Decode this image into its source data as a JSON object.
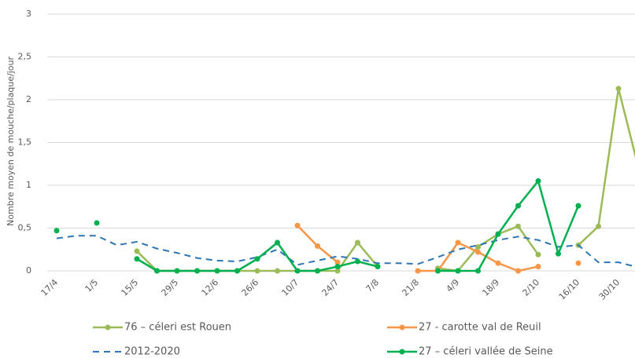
{
  "chart_data": {
    "type": "line",
    "y_label": "Nombre moyen de mouche/plaque/jour",
    "categories": [
      "17/4",
      null,
      "1/5",
      null,
      "15/5",
      null,
      "29/5",
      null,
      "12/6",
      null,
      "26/6",
      null,
      "10/7",
      null,
      "24/7",
      null,
      "7/8",
      null,
      "21/8",
      null,
      "4/9",
      null,
      "18/9",
      null,
      "2/10",
      null,
      "16/10",
      null,
      "30/10",
      null
    ],
    "ylim": [
      0,
      3
    ],
    "yticks": [
      0,
      {
        "value": 0.5,
        "label": "0,5"
      },
      1,
      {
        "value": 1.5,
        "label": "1,5"
      },
      2,
      {
        "value": 2.5,
        "label": "2,5"
      },
      3
    ],
    "grid": true,
    "legend": "bottom",
    "series": [
      {
        "name": "76 – céleri est Rouen",
        "color": "#9bbb59",
        "dashed": false,
        "markers": true,
        "values": [
          null,
          null,
          null,
          null,
          0.23,
          0,
          0,
          0,
          0,
          0,
          0,
          0,
          0,
          0,
          0,
          0.33,
          0.05,
          null,
          null,
          0.03,
          0,
          0.28,
          0.43,
          0.52,
          0.19,
          null,
          0.3,
          0.52,
          2.13,
          1.2
        ]
      },
      {
        "name": "27 - carotte val de Reuil",
        "color": "#f79646",
        "dashed": false,
        "markers": true,
        "values": [
          null,
          null,
          null,
          null,
          null,
          null,
          null,
          null,
          null,
          null,
          null,
          null,
          0.53,
          0.29,
          0.1,
          null,
          null,
          null,
          0,
          0,
          0.33,
          0.22,
          0.09,
          0,
          0.05,
          null,
          0.09,
          null,
          null,
          null
        ]
      },
      {
        "name": "2012-2020",
        "color": "#2e75b6",
        "dashed": true,
        "markers": false,
        "values": [
          0.38,
          0.41,
          0.41,
          0.3,
          0.34,
          0.26,
          0.21,
          0.15,
          0.12,
          0.11,
          0.16,
          0.25,
          0.07,
          0.12,
          0.17,
          0.14,
          0.09,
          0.09,
          0.08,
          0.16,
          0.25,
          0.3,
          0.36,
          0.4,
          0.36,
          0.28,
          0.3,
          0.1,
          0.1,
          0.04
        ]
      },
      {
        "name": "27 – céleri vallée de Seine",
        "color": "#00b050",
        "dashed": false,
        "markers": true,
        "values": [
          0.47,
          null,
          0.56,
          null,
          0.14,
          0,
          0,
          0,
          0,
          0,
          0.14,
          0.33,
          0,
          0,
          0.05,
          0.11,
          0.05,
          null,
          null,
          0,
          0,
          0,
          0.43,
          0.76,
          1.05,
          0.2,
          0.76,
          null,
          null,
          null
        ]
      }
    ]
  }
}
